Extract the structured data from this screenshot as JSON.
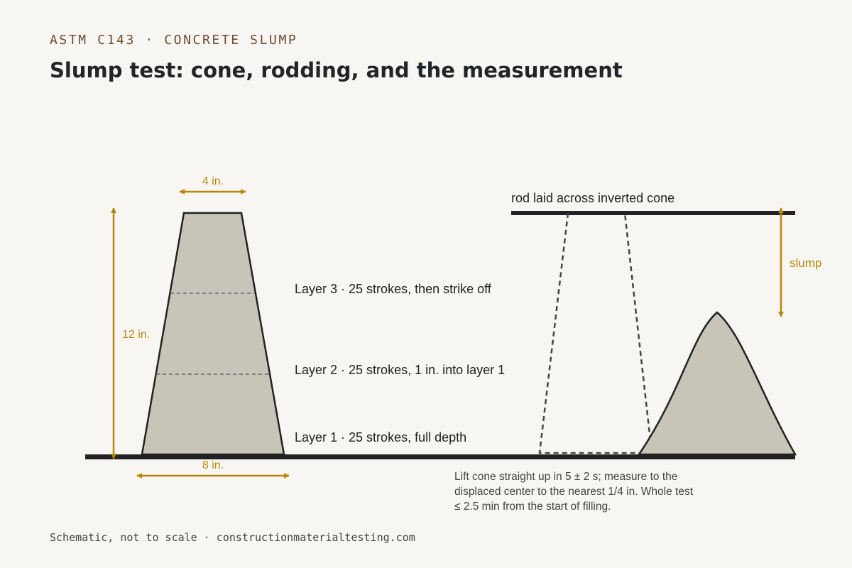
{
  "header": {
    "eyebrow": "ASTM C143 · CONCRETE SLUMP",
    "title": "Slump test: cone, rodding, and the measurement"
  },
  "cone": {
    "top_dim": "4 in.",
    "height_dim": "12 in.",
    "base_dim": "8 in."
  },
  "layers": [
    "Layer 3 · 25 strokes, then strike off",
    "Layer 2 · 25 strokes, 1 in. into layer 1",
    "Layer 1 · 25 strokes, full depth"
  ],
  "measurement": {
    "rod_label": "rod laid across inverted cone",
    "slump_label": "slump",
    "note_lines": [
      "Lift cone straight up in 5 ± 2 s; measure to the",
      "displaced center to the nearest 1/4 in. Whole test",
      "≤ 2.5 min from the start of filling."
    ]
  },
  "footer": "Schematic, not to scale · constructionmaterialtesting.com",
  "colors": {
    "accent": "#b8860b",
    "concrete": "#c8c5b8",
    "ink": "#222222"
  }
}
